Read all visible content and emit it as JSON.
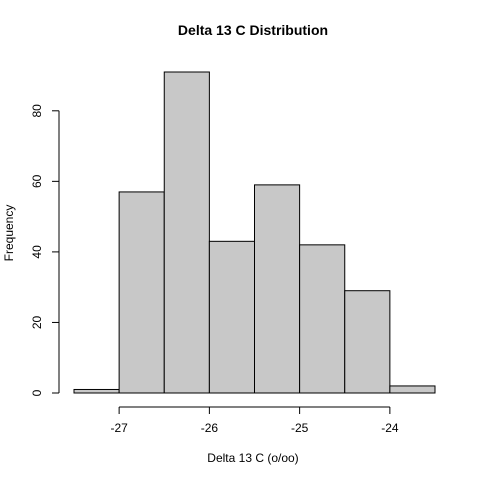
{
  "chart_data": {
    "type": "bar",
    "title": "Delta 13 C Distribution",
    "xlabel": "Delta 13 C (o/oo)",
    "ylabel": "Frequency",
    "bins": [
      {
        "from": -27.5,
        "to": -27.0,
        "count": 1
      },
      {
        "from": -27.0,
        "to": -26.5,
        "count": 57
      },
      {
        "from": -26.5,
        "to": -26.0,
        "count": 91
      },
      {
        "from": -26.0,
        "to": -25.5,
        "count": 43
      },
      {
        "from": -25.5,
        "to": -25.0,
        "count": 59
      },
      {
        "from": -25.0,
        "to": -24.5,
        "count": 42
      },
      {
        "from": -24.5,
        "to": -24.0,
        "count": 29
      },
      {
        "from": -24.0,
        "to": -23.5,
        "count": 2
      }
    ],
    "xlim": [
      -27.5,
      -23.5
    ],
    "ylim": [
      0,
      91
    ],
    "x_ticks": [
      -27,
      -26,
      -25,
      -24
    ],
    "y_ticks": [
      0,
      20,
      40,
      60,
      80
    ],
    "grid": false,
    "bar_color": "#c8c8c8"
  }
}
